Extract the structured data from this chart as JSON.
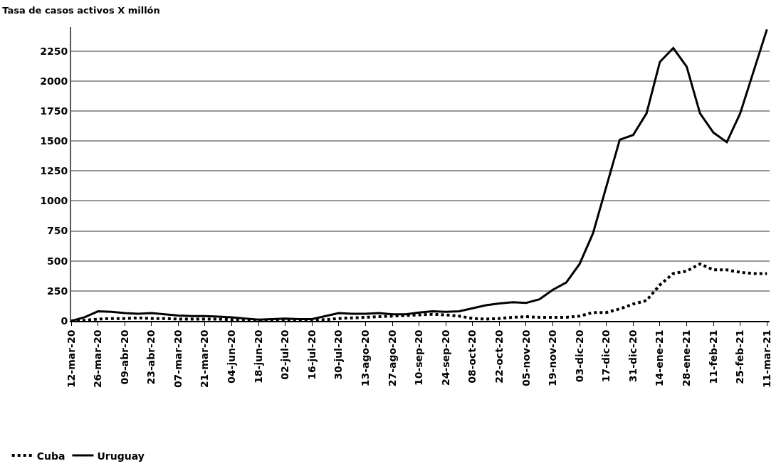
{
  "chart_data": {
    "type": "line",
    "title": "Tasa de casos activos X millón",
    "categories": [
      "12-mar-20",
      null,
      "26-mar-20",
      null,
      "09-abr-20",
      null,
      "23-abr-20",
      null,
      "07-mar-20",
      null,
      "21-mar-20",
      null,
      "04-jun-20",
      null,
      "18-jun-20",
      null,
      "02-jul-20",
      null,
      "16-jul-20",
      null,
      "30-jul-20",
      null,
      "13-ago-20",
      null,
      "27-ago-20",
      null,
      "10-sep-20",
      null,
      "24-sep-20",
      null,
      "08-oct-20",
      null,
      "22-oct-20",
      null,
      "05-nov-20",
      null,
      "19-nov-20",
      null,
      "03-dic-20",
      null,
      "17-dic-20",
      null,
      "31-dic-20",
      null,
      "14-ene-21",
      null,
      "28-ene-21",
      null,
      "11-feb-21",
      null,
      "25-feb-21",
      null,
      "11-mar-21"
    ],
    "series": [
      {
        "name": "Cuba",
        "color": "#000000",
        "line_style": "dotted",
        "values": [
          0,
          5,
          15,
          20,
          20,
          25,
          20,
          20,
          15,
          15,
          15,
          15,
          10,
          10,
          5,
          5,
          5,
          5,
          5,
          10,
          20,
          25,
          30,
          35,
          40,
          45,
          50,
          55,
          50,
          40,
          20,
          15,
          20,
          30,
          35,
          30,
          30,
          30,
          40,
          70,
          70,
          100,
          140,
          170,
          300,
          395,
          415,
          475,
          425,
          425,
          405,
          395,
          395
        ]
      },
      {
        "name": "Uruguay",
        "color": "#000000",
        "line_style": "solid",
        "values": [
          0,
          30,
          80,
          75,
          65,
          60,
          65,
          55,
          45,
          40,
          40,
          35,
          30,
          20,
          10,
          15,
          20,
          15,
          15,
          40,
          65,
          60,
          60,
          65,
          55,
          55,
          70,
          80,
          75,
          80,
          105,
          130,
          145,
          155,
          150,
          180,
          260,
          320,
          475,
          730,
          1120,
          1510,
          1550,
          1730,
          2160,
          2275,
          2120,
          1730,
          1570,
          1490,
          1730,
          2080,
          2430
        ]
      }
    ],
    "ylim": [
      0,
      2450
    ],
    "yticks": [
      0,
      250,
      500,
      750,
      1000,
      1250,
      1500,
      1750,
      2000,
      2250
    ],
    "grid": "y",
    "legend": "bottom left",
    "marker": "none"
  }
}
